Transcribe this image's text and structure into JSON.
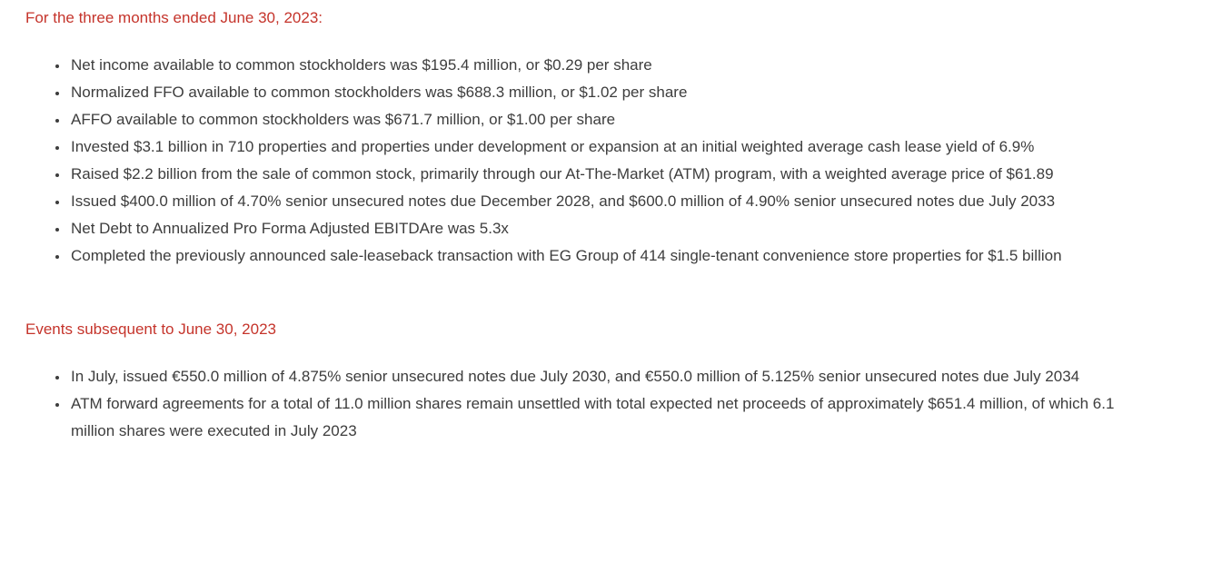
{
  "colors": {
    "background": "#ffffff",
    "heading_red": "#c5342b",
    "body_text": "#3d3d3d"
  },
  "document": {
    "sections": [
      {
        "heading": "For the three months ended June 30, 2023:",
        "bullets": [
          "Net income available to common stockholders was $195.4 million, or $0.29 per share",
          "Normalized FFO available to common stockholders was $688.3 million, or $1.02 per share",
          "AFFO available to common stockholders was $671.7 million, or $1.00 per share",
          "Invested $3.1 billion in 710 properties and properties under development or expansion at an initial weighted average cash lease yield of 6.9%",
          "Raised $2.2 billion from the sale of common stock, primarily through our At-The-Market (ATM) program, with a weighted average price of $61.89",
          "Issued $400.0 million of 4.70% senior unsecured notes due December 2028, and $600.0 million of 4.90% senior unsecured notes due July 2033",
          "Net Debt to Annualized Pro Forma Adjusted EBITDAre was 5.3x",
          "Completed the previously announced sale-leaseback transaction with EG Group of 414 single-tenant convenience store properties for $1.5 billion"
        ]
      },
      {
        "heading": "Events subsequent to June 30, 2023",
        "bullets": [
          "In July, issued €550.0 million of 4.875% senior unsecured notes due July 2030, and €550.0 million of 5.125% senior unsecured notes due July 2034",
          "ATM forward agreements for a total of 11.0 million shares remain unsettled with total expected net proceeds of approximately $651.4 million, of which 6.1 million shares were executed in July 2023"
        ]
      }
    ]
  }
}
